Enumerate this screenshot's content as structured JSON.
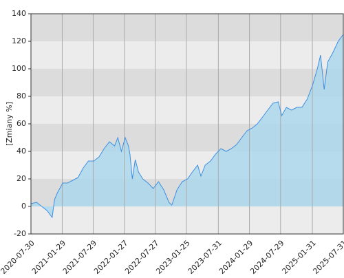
{
  "chart_data": {
    "type": "area",
    "y_label": "[Zmiany %]",
    "x": [
      "2020-07-30",
      "2020-09-01",
      "2020-10-01",
      "2020-11-01",
      "2020-12-01",
      "2020-12-15",
      "2021-01-01",
      "2021-02-01",
      "2021-03-01",
      "2021-04-01",
      "2021-05-01",
      "2021-06-01",
      "2021-07-01",
      "2021-08-01",
      "2021-09-01",
      "2021-10-01",
      "2021-11-01",
      "2021-12-01",
      "2021-12-20",
      "2022-01-10",
      "2022-02-01",
      "2022-02-20",
      "2022-03-01",
      "2022-03-15",
      "2022-04-01",
      "2022-04-20",
      "2022-05-15",
      "2022-06-15",
      "2022-07-15",
      "2022-08-15",
      "2022-09-15",
      "2022-10-15",
      "2022-11-01",
      "2022-12-01",
      "2023-01-01",
      "2023-02-01",
      "2023-03-01",
      "2023-04-01",
      "2023-04-20",
      "2023-05-15",
      "2023-06-15",
      "2023-07-15",
      "2023-08-15",
      "2023-09-15",
      "2023-10-15",
      "2023-11-15",
      "2023-12-15",
      "2024-01-15",
      "2024-02-15",
      "2024-03-15",
      "2024-04-15",
      "2024-05-15",
      "2024-06-15",
      "2024-07-15",
      "2024-08-05",
      "2024-09-01",
      "2024-10-01",
      "2024-11-01",
      "2024-12-01",
      "2025-01-01",
      "2025-02-01",
      "2025-03-01",
      "2025-03-20",
      "2025-04-10",
      "2025-05-01",
      "2025-06-01",
      "2025-07-01",
      "2025-07-31"
    ],
    "values": [
      2,
      3,
      0,
      -3,
      -8,
      5,
      10,
      17,
      17,
      19,
      21,
      28,
      33,
      33,
      36,
      42,
      47,
      44,
      50,
      40,
      50,
      44,
      38,
      20,
      34,
      25,
      20,
      17,
      13,
      18,
      12,
      3,
      1,
      12,
      18,
      20,
      25,
      30,
      22,
      30,
      33,
      38,
      42,
      40,
      42,
      45,
      50,
      55,
      57,
      60,
      65,
      70,
      75,
      76,
      66,
      72,
      70,
      72,
      72,
      78,
      88,
      100,
      110,
      85,
      105,
      112,
      120,
      125
    ],
    "color": "#3d8fe0",
    "fill": "#a9d7ee",
    "xlim": [
      "2020-07-30",
      "2025-07-31"
    ],
    "xticks": [
      "2020-07-30",
      "2021-01-29",
      "2021-07-29",
      "2022-01-27",
      "2022-07-27",
      "2023-01-25",
      "2023-07-31",
      "2024-01-29",
      "2024-07-29",
      "2025-01-31",
      "2025-07-31"
    ],
    "ylim": [
      -20,
      140
    ],
    "yticks": [
      -20,
      0,
      20,
      40,
      60,
      80,
      100,
      120,
      140
    ],
    "grid": true
  }
}
